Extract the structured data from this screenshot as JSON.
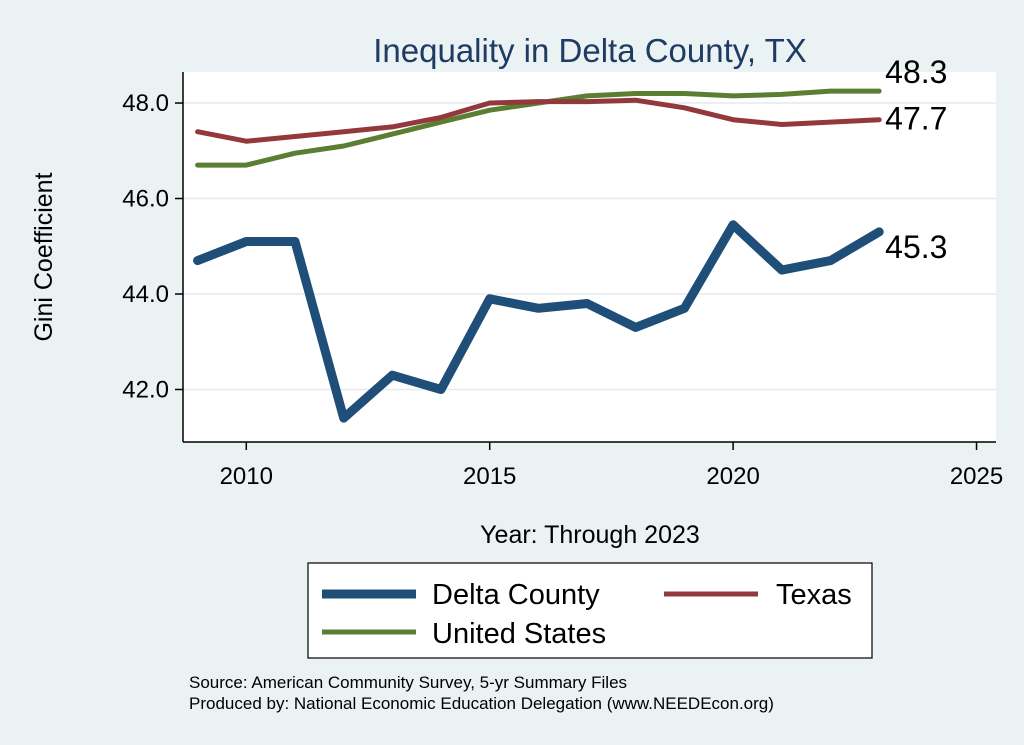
{
  "chart_data": {
    "type": "line",
    "title": "Inequality in Delta County, TX",
    "xlabel": "Year: Through 2023",
    "ylabel": "Gini Coefficient",
    "xlim": [
      2008.7,
      2025.4
    ],
    "ylim": [
      40.9,
      48.65
    ],
    "xticks": [
      2010,
      2015,
      2020,
      2025
    ],
    "xtick_labels": [
      "2010",
      "2015",
      "2020",
      "2025"
    ],
    "yticks": [
      42,
      44,
      46,
      48
    ],
    "ytick_labels": [
      "42.0",
      "44.0",
      "46.0",
      "48.0"
    ],
    "grid": true,
    "x": [
      2009,
      2010,
      2011,
      2012,
      2013,
      2014,
      2015,
      2016,
      2017,
      2018,
      2019,
      2020,
      2021,
      2022,
      2023
    ],
    "series": [
      {
        "name": "Delta County",
        "color": "#1f4e79",
        "end_label": "45.3",
        "values": [
          44.7,
          45.1,
          45.1,
          41.4,
          42.3,
          42.0,
          43.9,
          43.7,
          43.8,
          43.3,
          43.7,
          45.45,
          44.5,
          44.7,
          45.3
        ]
      },
      {
        "name": "Texas",
        "color": "#93383c",
        "end_label": "47.7",
        "values": [
          47.4,
          47.2,
          47.3,
          47.4,
          47.5,
          47.7,
          48.0,
          48.03,
          48.03,
          48.06,
          47.9,
          47.65,
          47.55,
          47.6,
          47.65
        ]
      },
      {
        "name": "United States",
        "color": "#5b7f32",
        "end_label": "48.3",
        "values": [
          46.7,
          46.7,
          46.95,
          47.1,
          47.35,
          47.6,
          47.85,
          48.0,
          48.15,
          48.2,
          48.2,
          48.15,
          48.18,
          48.25,
          48.25
        ]
      }
    ],
    "legend": {
      "placement": "bottom",
      "entries": [
        "Delta County",
        "Texas",
        "United States"
      ]
    }
  },
  "footer": {
    "source": "Source: American Community Survey, 5-yr Summary Files",
    "produced_by": "Produced by: National Economic Education Delegation (www.NEEDEcon.org)"
  }
}
